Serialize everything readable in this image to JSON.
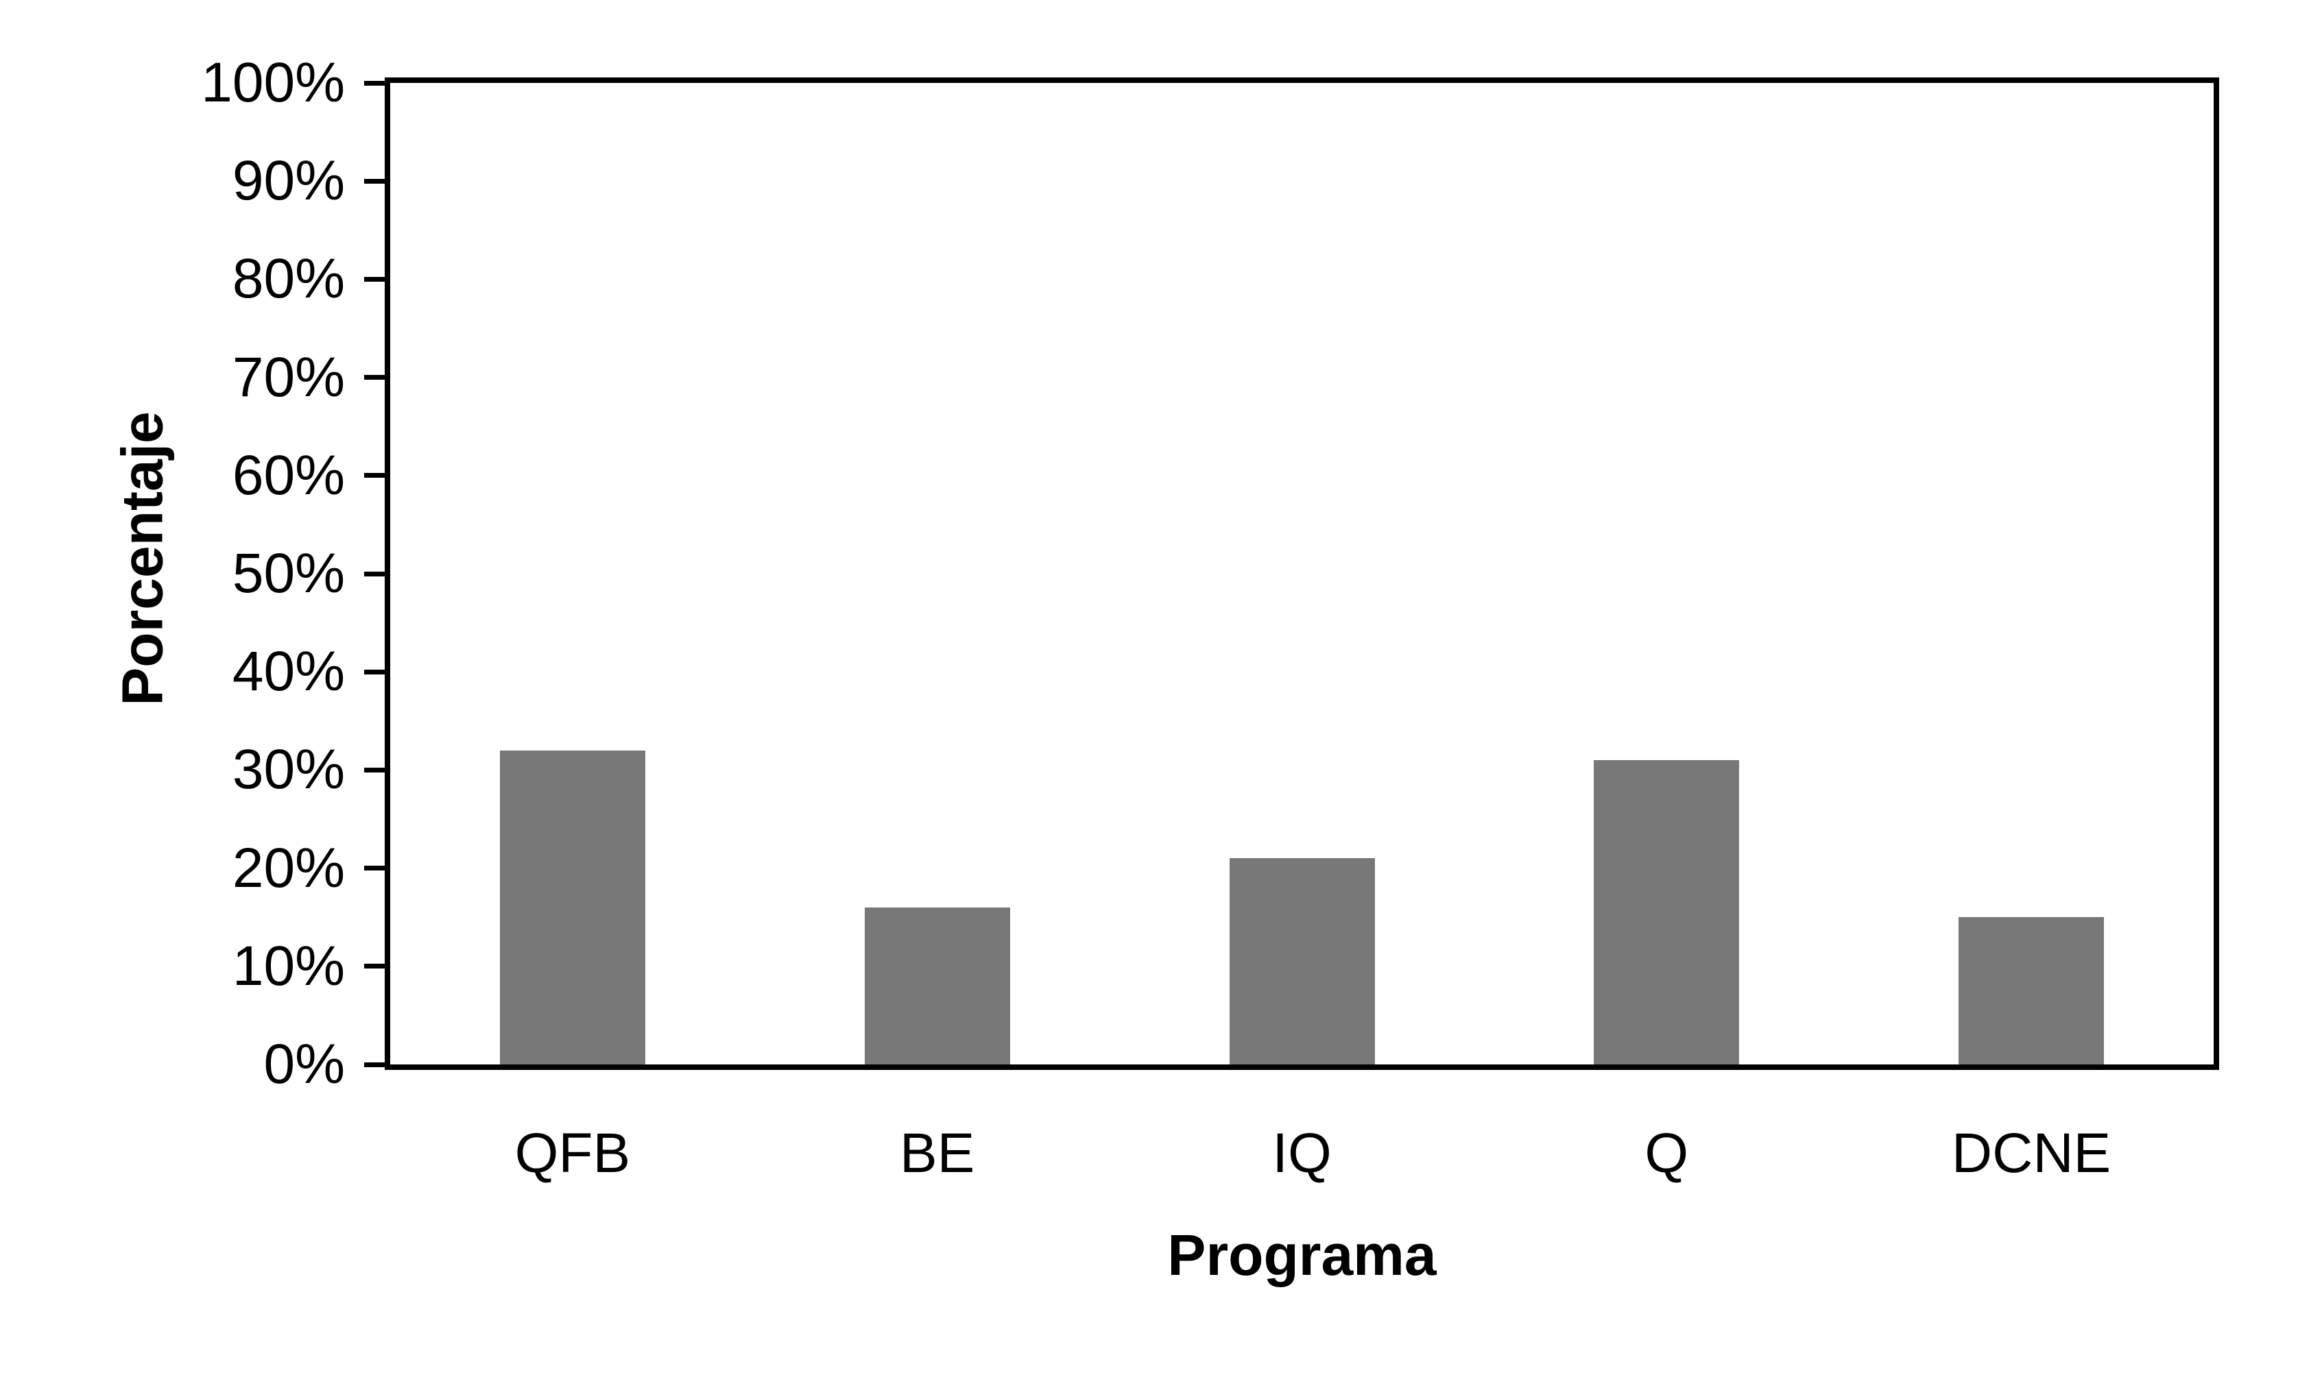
{
  "chart_data": {
    "type": "bar",
    "title": "",
    "xlabel": "Programa",
    "ylabel": "Porcentaje",
    "categories": [
      "QFB",
      "BE",
      "IQ",
      "Q",
      "DCNE"
    ],
    "values": [
      32,
      16,
      21,
      31,
      15
    ],
    "unit": "%",
    "ylim": [
      0,
      100
    ],
    "y_tick_step": 10,
    "y_tick_labels": [
      "0%",
      "10%",
      "20%",
      "30%",
      "40%",
      "50%",
      "60%",
      "70%",
      "80%",
      "90%",
      "100%"
    ],
    "grid": false,
    "legend": false,
    "bar_color": "#787878",
    "axis_color": "#000000",
    "background_color": "#ffffff"
  }
}
